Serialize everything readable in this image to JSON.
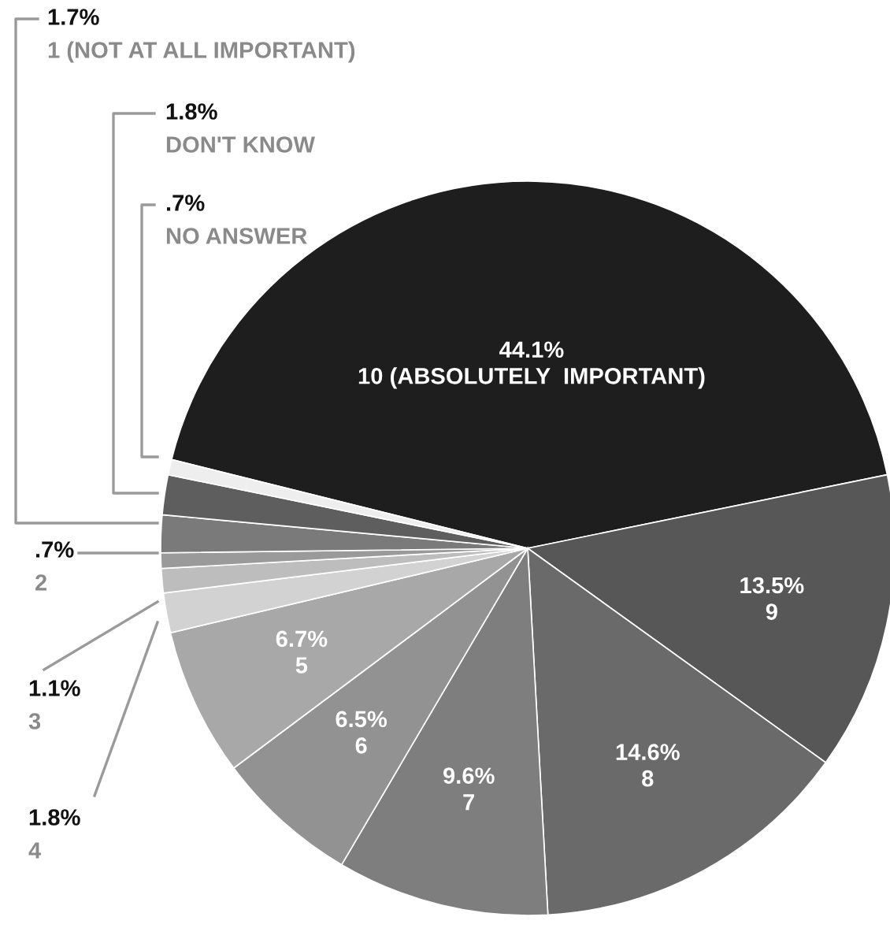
{
  "chart_data": {
    "type": "pie",
    "categories": [
      "10 (ABSOLUTELY  IMPORTANT)",
      "9",
      "8",
      "7",
      "6",
      "5",
      "4",
      "3",
      "2",
      "1 (NOT AT ALL IMPORTANT)",
      "DON'T KNOW",
      "NO ANSWER"
    ],
    "values": [
      44.1,
      13.5,
      14.6,
      9.6,
      6.5,
      6.7,
      1.8,
      1.1,
      0.7,
      1.7,
      1.8,
      0.7
    ],
    "value_labels": [
      "44.1%",
      "13.5%",
      "14.6%",
      "9.6%",
      "6.5%",
      "6.7%",
      "1.8%",
      "1.1%",
      ".7%",
      "1.7%",
      "1.8%",
      ".7%"
    ],
    "colors": [
      "#1e1e1e",
      "#575757",
      "#6a6a6a",
      "#7e7e7e",
      "#929292",
      "#a8a8a8",
      "#d2d2d2",
      "#bdbdbd",
      "#9a9a9a",
      "#7a7a7a",
      "#5e5e5e",
      "#eeeeee"
    ],
    "legend": false
  }
}
